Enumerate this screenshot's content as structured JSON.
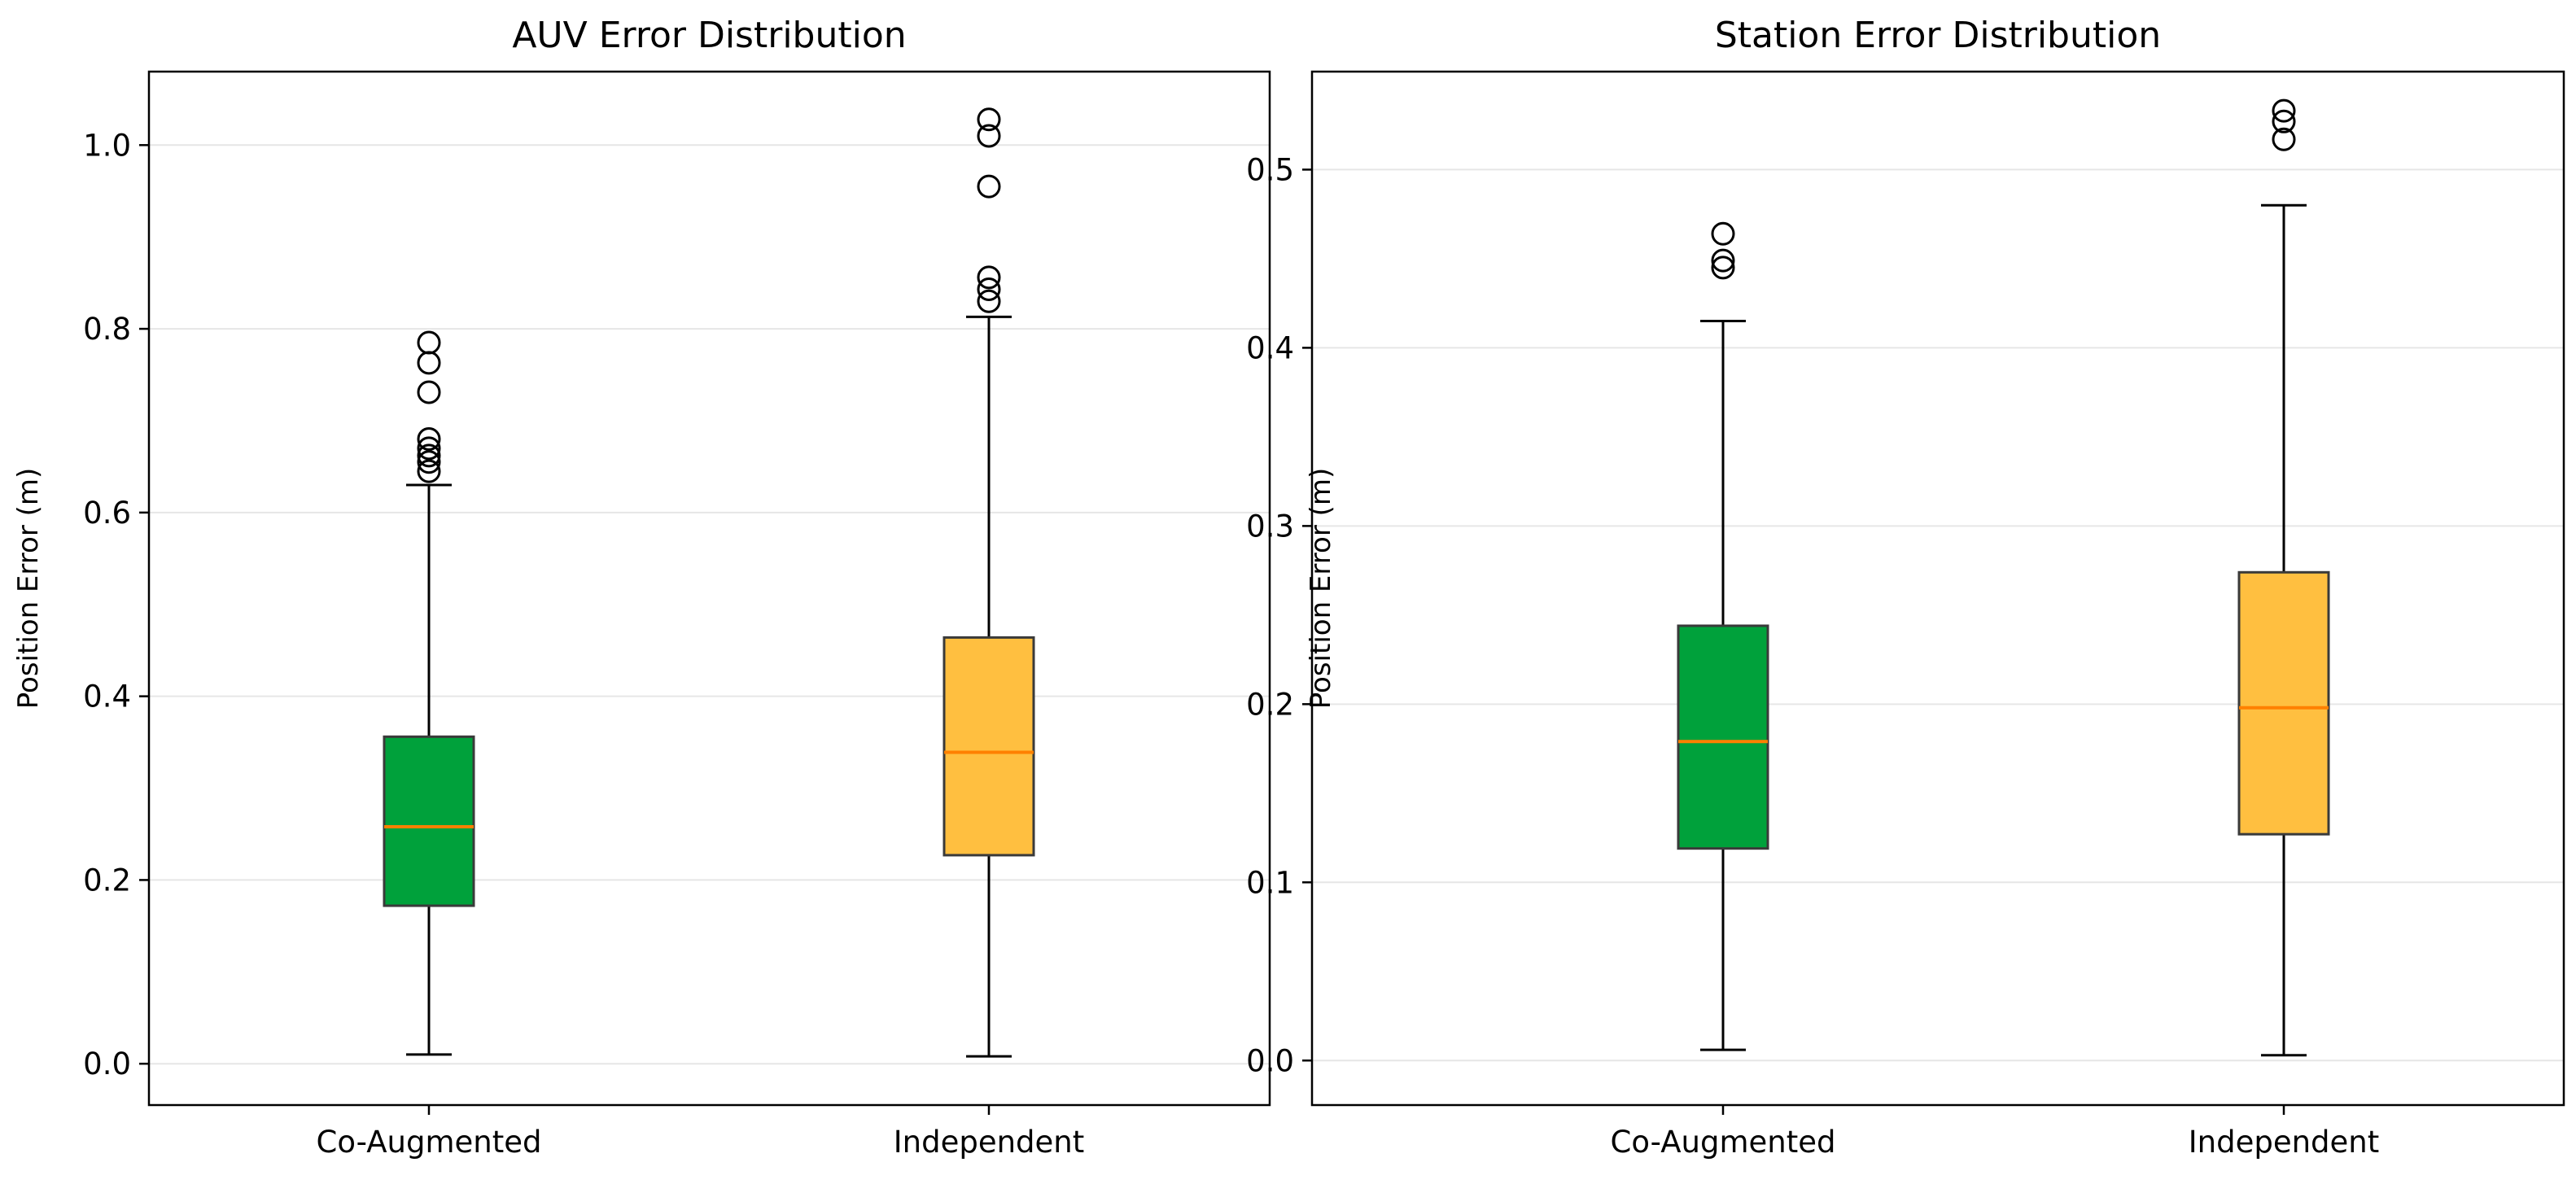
{
  "chart_data": [
    {
      "type": "box",
      "title": "AUV Error Distribution",
      "xlabel": "",
      "ylabel": "Position Error (m)",
      "ylim": [
        -0.045,
        1.08
      ],
      "yticks": [
        0.0,
        0.2,
        0.4,
        0.6,
        0.8,
        1.0
      ],
      "ytick_labels": [
        "0.0",
        "0.2",
        "0.4",
        "0.6",
        "0.8",
        "1.0"
      ],
      "grid": true,
      "categories": [
        "Co-Augmented",
        "Independent"
      ],
      "series": [
        {
          "name": "Co-Augmented",
          "color": "#00a13b",
          "whisker_low": 0.01,
          "q1": 0.172,
          "median": 0.258,
          "q3": 0.356,
          "whisker_high": 0.63,
          "outliers": [
            0.785,
            0.763,
            0.731,
            0.68,
            0.67,
            0.662,
            0.655,
            0.645
          ]
        },
        {
          "name": "Independent",
          "color": "#ffbf40",
          "whisker_low": 0.008,
          "q1": 0.227,
          "median": 0.339,
          "q3": 0.464,
          "whisker_high": 0.813,
          "outliers": [
            1.028,
            1.01,
            0.955,
            0.856,
            0.843,
            0.83
          ]
        }
      ],
      "median_color": "#ff8000"
    },
    {
      "type": "box",
      "title": "Station Error Distribution",
      "xlabel": "",
      "ylabel": "Position Error (m)",
      "ylim": [
        -0.025,
        0.555
      ],
      "yticks": [
        0.0,
        0.1,
        0.2,
        0.3,
        0.4,
        0.5
      ],
      "ytick_labels": [
        "0.0",
        "0.1",
        "0.2",
        "0.3",
        "0.4",
        "0.5"
      ],
      "grid": true,
      "categories": [
        "Co-Augmented",
        "Independent"
      ],
      "series": [
        {
          "name": "Co-Augmented",
          "color": "#00a13b",
          "whisker_low": 0.006,
          "q1": 0.119,
          "median": 0.179,
          "q3": 0.244,
          "whisker_high": 0.415,
          "outliers": [
            0.464,
            0.449,
            0.445
          ]
        },
        {
          "name": "Independent",
          "color": "#ffbf40",
          "whisker_low": 0.003,
          "q1": 0.127,
          "median": 0.198,
          "q3": 0.274,
          "whisker_high": 0.48,
          "outliers": [
            0.533,
            0.527,
            0.517
          ]
        }
      ],
      "median_color": "#ff8000"
    }
  ]
}
